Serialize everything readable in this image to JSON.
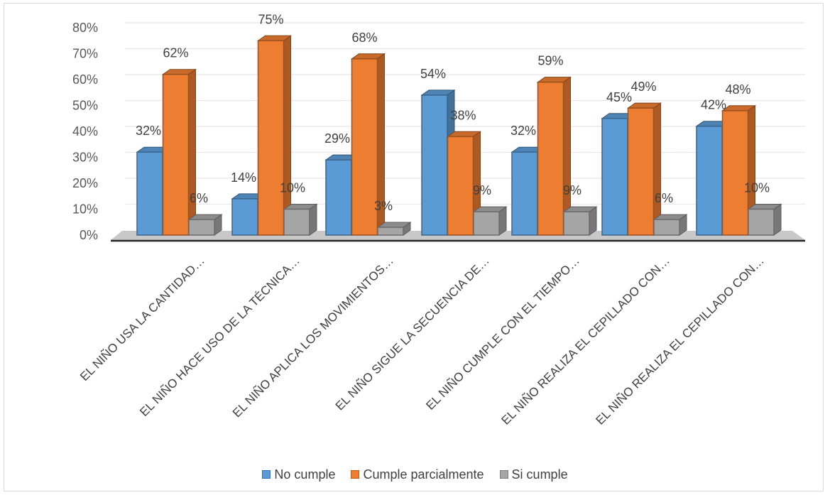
{
  "chart_data": {
    "type": "bar",
    "categories": [
      "EL NIÑO USA LA CANTIDAD…",
      "EL NIÑO HACE USO DE LA TÉCNICA…",
      "EL NIÑO APLICA LOS MOVIMIENTOS…",
      "EL NIÑO SIGUE LA SECUENCIA DE…",
      "EL NIÑO CUMPLE CON EL TIEMPO…",
      "EL NIÑO REALIZA EL CEPILLADO CON…",
      "EL NIÑO REALIZA EL CEPILLADO CON…"
    ],
    "series": [
      {
        "name": "No cumple",
        "values": [
          32,
          14,
          29,
          54,
          32,
          45,
          42
        ],
        "labels": [
          "32%",
          "14%",
          "29%",
          "54%",
          "32%",
          "45%",
          "42%"
        ],
        "color": "#5b9bd5"
      },
      {
        "name": "Cumple parcialmente",
        "values": [
          62,
          75,
          68,
          38,
          59,
          49,
          48
        ],
        "labels": [
          "62%",
          "75%",
          "68%",
          "38%",
          "59%",
          "49%",
          "48%"
        ],
        "color": "#ed7d31"
      },
      {
        "name": "Si cumple",
        "values": [
          6,
          10,
          3,
          9,
          9,
          6,
          10
        ],
        "labels": [
          "6%",
          "10%",
          "3%",
          "9%",
          "9%",
          "6%",
          "10%"
        ],
        "color": "#a5a5a5"
      }
    ],
    "yticks": [
      "0%",
      "10%",
      "20%",
      "30%",
      "40%",
      "50%",
      "60%",
      "70%",
      "80%"
    ],
    "ylim": [
      0,
      80
    ],
    "grid": true,
    "legend_position": "bottom",
    "style": "3d-clustered-column"
  }
}
